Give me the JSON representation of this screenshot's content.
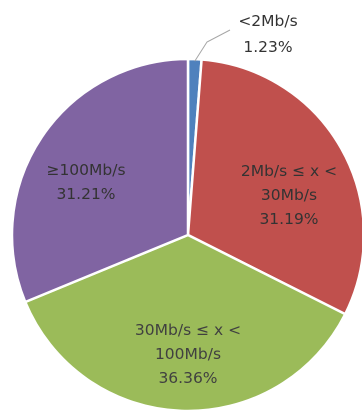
{
  "chart_data": {
    "type": "pie",
    "title": "",
    "slices": [
      {
        "label": "<2Mb/s",
        "percent_label": "1.23%",
        "value": 1.23,
        "color": "#4f81bd"
      },
      {
        "label": "2Mb/s ≤ x < 30Mb/s",
        "label_lines": [
          "2Mb/s ≤ x <",
          "30Mb/s"
        ],
        "percent_label": "31.19%",
        "value": 31.19,
        "color": "#c0504d"
      },
      {
        "label": "30Mb/s ≤ x < 100Mb/s",
        "label_lines": [
          "30Mb/s ≤ x <",
          "100Mb/s"
        ],
        "percent_label": "36.36%",
        "value": 36.36,
        "color": "#9bbb59"
      },
      {
        "label": "≥100Mb/s",
        "label_lines": [
          "≥100Mb/s"
        ],
        "percent_label": "31.21%",
        "value": 31.21,
        "color": "#8064a2"
      }
    ]
  }
}
